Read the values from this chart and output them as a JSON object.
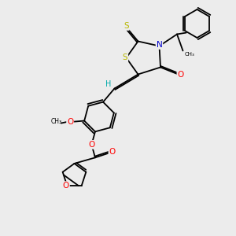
{
  "bg_color": "#ececec",
  "bond_color": "#000000",
  "atom_colors": {
    "S": "#b8b800",
    "N": "#0000cc",
    "O": "#ff0000",
    "H": "#00aaaa",
    "C": "#000000"
  },
  "lw": 1.3,
  "dbl_off": 0.055,
  "fs": 7.5
}
